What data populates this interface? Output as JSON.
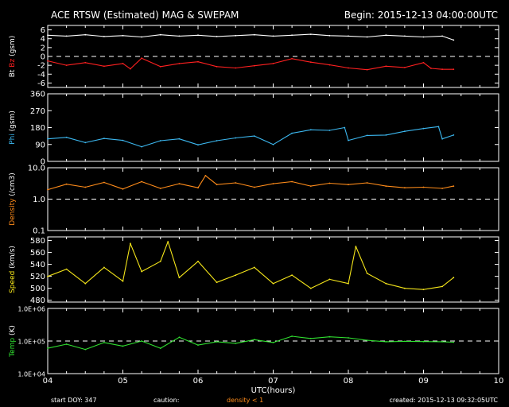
{
  "header": {
    "title": "ACE RTSW (Estimated) MAG & SWEPAM",
    "begin": "Begin: 2015-12-13 04:00:00UTC"
  },
  "footer": {
    "start_doy": "start DOY: 347",
    "caution": "caution:",
    "density_note": "density < 1",
    "created": "created: 2015-12-13 09:32:05UTC"
  },
  "colors": {
    "background": "#000000",
    "axes": "#ffffff",
    "bt": "#ffffff",
    "bz": "#ff2020",
    "phi": "#3cb8f0",
    "density": "#ff8c1a",
    "speed": "#f5e61a",
    "temp": "#30e030",
    "density_note": "#ff8c1a"
  },
  "chart_data": [
    {
      "type": "line",
      "panel": "mag",
      "ylabel_parts": [
        "Bt",
        "Bz",
        "(gsm)"
      ],
      "yticks": [
        6,
        4,
        2,
        0,
        -2,
        -4,
        -6
      ],
      "ytick_labels": [
        "6",
        "4",
        "2",
        "0",
        "-2",
        "-4",
        "-6"
      ],
      "ylim": [
        -7,
        7
      ],
      "reference_line": 0,
      "x_unit": "UTC hours",
      "xlim": [
        4,
        10
      ],
      "series": [
        {
          "name": "Bt",
          "x": [
            4.0,
            4.25,
            4.5,
            4.75,
            5.0,
            5.25,
            5.5,
            5.75,
            6.0,
            6.25,
            6.5,
            6.75,
            7.0,
            7.25,
            7.5,
            7.75,
            8.0,
            8.25,
            8.5,
            8.75,
            9.0,
            9.25,
            9.4
          ],
          "values": [
            4.8,
            4.6,
            4.9,
            4.5,
            4.7,
            4.4,
            4.9,
            4.6,
            4.8,
            4.5,
            4.7,
            4.9,
            4.6,
            4.8,
            5.0,
            4.7,
            4.6,
            4.4,
            4.8,
            4.6,
            4.4,
            4.6,
            3.7
          ]
        },
        {
          "name": "Bz",
          "x": [
            4.0,
            4.25,
            4.5,
            4.75,
            5.0,
            5.1,
            5.25,
            5.5,
            5.75,
            6.0,
            6.25,
            6.5,
            6.75,
            7.0,
            7.25,
            7.5,
            7.75,
            8.0,
            8.25,
            8.5,
            8.75,
            9.0,
            9.1,
            9.25,
            9.4
          ],
          "values": [
            -1.0,
            -2.0,
            -1.4,
            -2.2,
            -1.6,
            -2.8,
            -0.4,
            -2.3,
            -1.6,
            -1.2,
            -2.3,
            -2.6,
            -2.1,
            -1.6,
            -0.5,
            -1.3,
            -1.9,
            -2.6,
            -3.0,
            -2.2,
            -2.5,
            -1.4,
            -2.7,
            -2.9,
            -2.9
          ]
        }
      ]
    },
    {
      "type": "line",
      "panel": "phi",
      "ylabel_parts": [
        "Phi",
        "(gsm)"
      ],
      "yticks": [
        360,
        270,
        180,
        90,
        0
      ],
      "ytick_labels": [
        "360",
        "270",
        "180",
        "90",
        "0"
      ],
      "ylim": [
        0,
        360
      ],
      "x_unit": "UTC hours",
      "xlim": [
        4,
        10
      ],
      "series": [
        {
          "name": "Phi",
          "x": [
            4.0,
            4.25,
            4.5,
            4.75,
            5.0,
            5.25,
            5.5,
            5.75,
            6.0,
            6.25,
            6.5,
            6.75,
            7.0,
            7.25,
            7.5,
            7.75,
            7.95,
            8.0,
            8.25,
            8.5,
            8.75,
            9.0,
            9.2,
            9.25,
            9.4
          ],
          "values": [
            120,
            128,
            100,
            122,
            112,
            78,
            110,
            120,
            88,
            110,
            125,
            135,
            90,
            150,
            168,
            165,
            180,
            112,
            138,
            140,
            160,
            175,
            185,
            120,
            140
          ]
        }
      ]
    },
    {
      "type": "line",
      "panel": "density",
      "ylabel_parts": [
        "Density",
        "(/cm3)"
      ],
      "yscale": "log",
      "yticks": [
        10.0,
        1.0,
        0.1
      ],
      "ytick_labels": [
        "10.0",
        "1.0",
        "0.1"
      ],
      "ylim": [
        0.1,
        10.0
      ],
      "reference_line": 1.0,
      "x_unit": "UTC hours",
      "xlim": [
        4,
        10
      ],
      "series": [
        {
          "name": "Density",
          "x": [
            4.0,
            4.25,
            4.5,
            4.75,
            5.0,
            5.25,
            5.5,
            5.75,
            6.0,
            6.1,
            6.25,
            6.5,
            6.75,
            7.0,
            7.25,
            7.5,
            7.75,
            8.0,
            8.25,
            8.5,
            8.75,
            9.0,
            9.25,
            9.4
          ],
          "values": [
            2.0,
            3.0,
            2.4,
            3.4,
            2.1,
            3.6,
            2.2,
            3.1,
            2.3,
            5.6,
            2.9,
            3.3,
            2.4,
            3.1,
            3.6,
            2.6,
            3.2,
            2.9,
            3.3,
            2.6,
            2.3,
            2.4,
            2.2,
            2.6
          ]
        }
      ]
    },
    {
      "type": "line",
      "panel": "speed",
      "ylabel_parts": [
        "Speed",
        "(km/s)"
      ],
      "yticks": [
        580,
        560,
        540,
        520,
        500,
        480
      ],
      "ytick_labels": [
        "580",
        "560",
        "540",
        "520",
        "500",
        "480"
      ],
      "ylim": [
        477,
        586
      ],
      "x_unit": "UTC hours",
      "xlim": [
        4,
        10
      ],
      "series": [
        {
          "name": "Speed",
          "x": [
            4.0,
            4.25,
            4.5,
            4.75,
            5.0,
            5.1,
            5.25,
            5.5,
            5.6,
            5.75,
            6.0,
            6.25,
            6.5,
            6.75,
            7.0,
            7.25,
            7.5,
            7.75,
            8.0,
            8.1,
            8.25,
            8.5,
            8.75,
            9.0,
            9.25,
            9.4
          ],
          "values": [
            520,
            532,
            508,
            535,
            512,
            575,
            528,
            545,
            578,
            518,
            545,
            510,
            522,
            535,
            508,
            522,
            500,
            515,
            508,
            570,
            525,
            508,
            500,
            498,
            503,
            518
          ]
        }
      ]
    },
    {
      "type": "line",
      "panel": "temp",
      "ylabel_parts": [
        "Temp",
        "(K)"
      ],
      "yscale": "log",
      "yticks": [
        1000000,
        100000,
        10000
      ],
      "ytick_labels": [
        "1.0E+06",
        "1.0E+05",
        "1.0E+04"
      ],
      "ylim": [
        10000,
        1000000
      ],
      "reference_line": 100000,
      "x_unit": "UTC hours",
      "xlim": [
        4,
        10
      ],
      "xticks": [
        4,
        5,
        6,
        7,
        8,
        9,
        10
      ],
      "xtick_labels": [
        "04",
        "05",
        "06",
        "07",
        "08",
        "09",
        "10"
      ],
      "xlabel": "UTC(hours)",
      "series": [
        {
          "name": "Temp",
          "x": [
            4.0,
            4.25,
            4.5,
            4.75,
            5.0,
            5.25,
            5.5,
            5.75,
            6.0,
            6.25,
            6.5,
            6.75,
            7.0,
            7.25,
            7.5,
            7.75,
            8.0,
            8.25,
            8.5,
            8.75,
            9.0,
            9.25,
            9.4
          ],
          "values": [
            60000,
            80000,
            55000,
            90000,
            70000,
            100000,
            60000,
            130000,
            75000,
            95000,
            85000,
            110000,
            90000,
            140000,
            120000,
            135000,
            125000,
            105000,
            95000,
            98000,
            96000,
            95000,
            92000
          ]
        }
      ]
    }
  ]
}
